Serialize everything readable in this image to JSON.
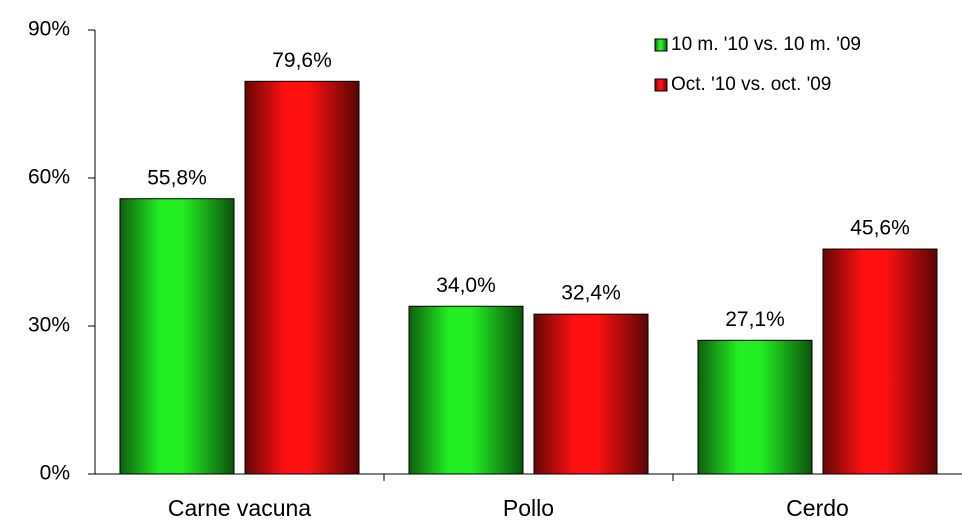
{
  "chart_data": {
    "type": "bar",
    "categories": [
      "Carne vacuna",
      "Pollo",
      "Cerdo"
    ],
    "series": [
      {
        "name": "10 m. '10 vs. 10 m. '09",
        "color": "#22ee22",
        "values": [
          55.8,
          34.0,
          27.1
        ],
        "value_labels": [
          "55,8%",
          "34,0%",
          "27,1%"
        ]
      },
      {
        "name": "Oct. '10 vs. oct. '09",
        "color": "#ff1010",
        "values": [
          79.6,
          32.4,
          45.6
        ],
        "value_labels": [
          "79,6%",
          "32,4%",
          "45,6%"
        ]
      }
    ],
    "ylim": [
      0,
      90
    ],
    "yticks": [
      {
        "value": 0,
        "label": "0%"
      },
      {
        "value": 30,
        "label": "30%"
      },
      {
        "value": 60,
        "label": "60%"
      },
      {
        "value": 90,
        "label": "90%"
      }
    ],
    "legend": "upper right"
  }
}
